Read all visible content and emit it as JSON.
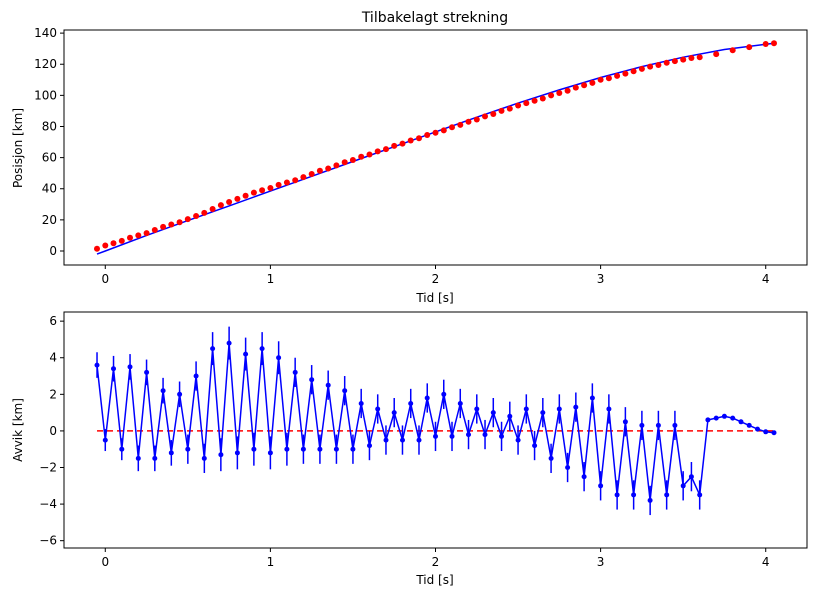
{
  "chart_data": [
    {
      "type": "scatter",
      "title": "Tilbakelagt strekning",
      "xlabel": "Tid [s]",
      "ylabel": "Posisjon [km]",
      "xlim": [
        -0.25,
        4.25
      ],
      "ylim": [
        -9,
        142
      ],
      "xticks": [
        0,
        1,
        2,
        3,
        4
      ],
      "yticks": [
        0,
        20,
        40,
        60,
        80,
        100,
        120,
        140
      ],
      "grid": false,
      "legend": "none",
      "colors": {
        "fit": "#0000ff",
        "points": "#ff0000"
      },
      "fit_line": {
        "x": [
          -0.05,
          0.0,
          0.25,
          0.5,
          0.75,
          1.0,
          1.25,
          1.5,
          1.75,
          2.0,
          2.25,
          2.5,
          2.75,
          3.0,
          3.25,
          3.5,
          3.75,
          4.05
        ],
        "y": [
          -2.0,
          0.0,
          10.0,
          19.5,
          29.0,
          38.5,
          48.0,
          57.5,
          67.0,
          76.5,
          86.0,
          95.0,
          103.5,
          111.5,
          118.5,
          124.5,
          129.5,
          133.5
        ]
      },
      "points": {
        "x": [
          -0.05,
          0.0,
          0.05,
          0.1,
          0.15,
          0.2,
          0.25,
          0.3,
          0.35,
          0.4,
          0.45,
          0.5,
          0.55,
          0.6,
          0.65,
          0.7,
          0.75,
          0.8,
          0.85,
          0.9,
          0.95,
          1.0,
          1.05,
          1.1,
          1.15,
          1.2,
          1.25,
          1.3,
          1.35,
          1.4,
          1.45,
          1.5,
          1.55,
          1.6,
          1.65,
          1.7,
          1.75,
          1.8,
          1.85,
          1.9,
          1.95,
          2.0,
          2.05,
          2.1,
          2.15,
          2.2,
          2.25,
          2.3,
          2.35,
          2.4,
          2.45,
          2.5,
          2.55,
          2.6,
          2.65,
          2.7,
          2.75,
          2.8,
          2.85,
          2.9,
          2.95,
          3.0,
          3.05,
          3.1,
          3.15,
          3.2,
          3.25,
          3.3,
          3.35,
          3.4,
          3.45,
          3.5,
          3.55,
          3.6,
          3.7,
          3.8,
          3.9,
          4.0,
          4.05
        ],
        "y": [
          1.5,
          3.5,
          5.0,
          6.5,
          8.5,
          10.0,
          11.5,
          13.5,
          15.5,
          17.0,
          18.5,
          20.5,
          22.5,
          24.5,
          27.0,
          29.5,
          31.5,
          33.5,
          35.5,
          37.5,
          39.0,
          40.5,
          42.5,
          44.0,
          45.5,
          47.5,
          49.5,
          51.5,
          53.0,
          55.0,
          57.0,
          58.5,
          60.5,
          62.0,
          64.0,
          65.5,
          67.5,
          69.0,
          71.0,
          72.5,
          74.5,
          76.0,
          77.5,
          79.5,
          81.0,
          83.0,
          84.5,
          86.5,
          88.0,
          90.0,
          91.5,
          93.5,
          95.0,
          96.5,
          98.0,
          100.0,
          101.5,
          103.0,
          105.0,
          106.5,
          108.0,
          110.0,
          111.0,
          112.5,
          114.0,
          115.5,
          117.0,
          118.5,
          119.5,
          121.0,
          122.0,
          123.0,
          124.0,
          124.5,
          126.5,
          129.0,
          131.0,
          133.0,
          133.5
        ]
      }
    },
    {
      "type": "line",
      "xlabel": "Tid [s]",
      "ylabel": "Avvik [km]",
      "xlim": [
        -0.25,
        4.25
      ],
      "ylim": [
        -6.4,
        6.5
      ],
      "xticks": [
        0,
        1,
        2,
        3,
        4
      ],
      "yticks": [
        -6,
        -4,
        -2,
        0,
        2,
        4,
        6
      ],
      "grid": false,
      "legend": "none",
      "colors": {
        "series": "#0000ff",
        "zero_line": "#ff0000"
      },
      "zero_line": {
        "x": [
          -0.05,
          4.05
        ],
        "y": [
          0,
          0
        ],
        "style": "dashed"
      },
      "series": {
        "x": [
          -0.05,
          0.0,
          0.05,
          0.1,
          0.15,
          0.2,
          0.25,
          0.3,
          0.35,
          0.4,
          0.45,
          0.5,
          0.55,
          0.6,
          0.65,
          0.7,
          0.75,
          0.8,
          0.85,
          0.9,
          0.95,
          1.0,
          1.05,
          1.1,
          1.15,
          1.2,
          1.25,
          1.3,
          1.35,
          1.4,
          1.45,
          1.5,
          1.55,
          1.6,
          1.65,
          1.7,
          1.75,
          1.8,
          1.85,
          1.9,
          1.95,
          2.0,
          2.05,
          2.1,
          2.15,
          2.2,
          2.25,
          2.3,
          2.35,
          2.4,
          2.45,
          2.5,
          2.55,
          2.6,
          2.65,
          2.7,
          2.75,
          2.8,
          2.85,
          2.9,
          2.95,
          3.0,
          3.05,
          3.1,
          3.15,
          3.2,
          3.25,
          3.3,
          3.35,
          3.4,
          3.45,
          3.5,
          3.55,
          3.6,
          3.65,
          3.7,
          3.75,
          3.8,
          3.85,
          3.9,
          3.95,
          4.0,
          4.05
        ],
        "y": [
          3.6,
          -0.5,
          3.4,
          -1.0,
          3.5,
          -1.5,
          3.2,
          -1.5,
          2.2,
          -1.2,
          2.0,
          -1.0,
          3.0,
          -1.5,
          4.5,
          -1.3,
          4.8,
          -1.2,
          4.2,
          -1.0,
          4.5,
          -1.2,
          4.0,
          -1.0,
          3.2,
          -1.0,
          2.8,
          -1.0,
          2.5,
          -1.0,
          2.2,
          -1.0,
          1.5,
          -0.8,
          1.2,
          -0.5,
          1.0,
          -0.5,
          1.5,
          -0.5,
          1.8,
          -0.3,
          2.0,
          -0.3,
          1.5,
          -0.2,
          1.2,
          -0.2,
          1.0,
          -0.3,
          0.8,
          -0.5,
          1.2,
          -0.8,
          1.0,
          -1.5,
          1.2,
          -2.0,
          1.3,
          -2.5,
          1.8,
          -3.0,
          1.2,
          -3.5,
          0.5,
          -3.5,
          0.3,
          -3.8,
          0.3,
          -3.5,
          0.3,
          -3.0,
          -2.5,
          -3.5,
          0.6,
          0.7,
          0.8,
          0.7,
          0.5,
          0.3,
          0.1,
          -0.05,
          -0.1
        ],
        "error": [
          0.7,
          0.6,
          0.7,
          0.6,
          0.7,
          0.7,
          0.7,
          0.7,
          0.7,
          0.7,
          0.7,
          0.8,
          0.8,
          0.8,
          0.9,
          0.9,
          0.9,
          0.9,
          0.9,
          0.9,
          0.9,
          0.9,
          0.9,
          0.9,
          0.8,
          0.8,
          0.8,
          0.8,
          0.8,
          0.8,
          0.8,
          0.8,
          0.8,
          0.8,
          0.8,
          0.8,
          0.8,
          0.8,
          0.8,
          0.8,
          0.8,
          0.8,
          0.8,
          0.8,
          0.8,
          0.8,
          0.8,
          0.8,
          0.8,
          0.8,
          0.8,
          0.8,
          0.8,
          0.8,
          0.8,
          0.8,
          0.8,
          0.8,
          0.8,
          0.8,
          0.8,
          0.8,
          0.8,
          0.8,
          0.8,
          0.8,
          0.8,
          0.8,
          0.8,
          0.8,
          0.8,
          0.8,
          0.8,
          0.8,
          0.1,
          0.1,
          0.1,
          0.1,
          0.1,
          0.1,
          0.1,
          0.1,
          0.1
        ]
      }
    }
  ]
}
